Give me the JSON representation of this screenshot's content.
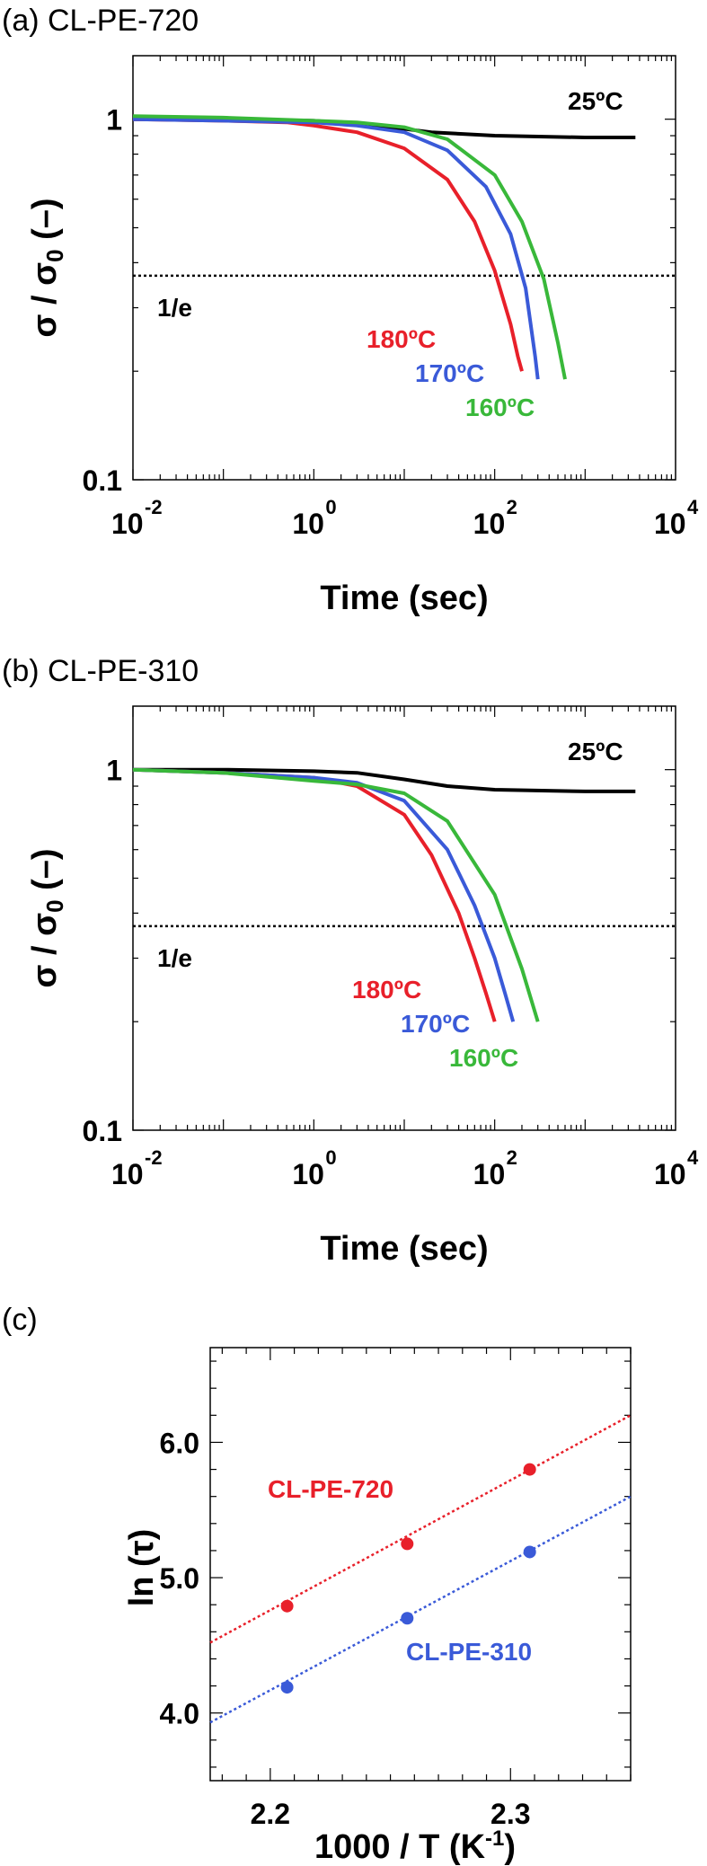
{
  "chart_data": [
    {
      "panel": "(a) CL-PE-720",
      "type": "line",
      "xlabel": "Time (sec)",
      "ylabel": "σ / σ0 (–)",
      "xscale": "log",
      "yscale": "log",
      "xlim": [
        0.01,
        10000
      ],
      "ylim": [
        0.1,
        1.5
      ],
      "xticks": [
        {
          "base": "10",
          "exp": "-2",
          "value": 0.01
        },
        {
          "base": "10",
          "exp": "0",
          "value": 1
        },
        {
          "base": "10",
          "exp": "2",
          "value": 100
        },
        {
          "base": "10",
          "exp": "4",
          "value": 10000
        }
      ],
      "yticks": [
        {
          "label": "1",
          "value": 1
        },
        {
          "label": "0.1",
          "value": 0.1
        }
      ],
      "reference_line": {
        "label": "1/e",
        "value": 0.368
      },
      "series": [
        {
          "name": "25ºC",
          "color": "#000000",
          "x": [
            0.01,
            0.1,
            1,
            5,
            20,
            100,
            1000,
            3600
          ],
          "y": [
            1.0,
            1.0,
            0.99,
            0.96,
            0.92,
            0.9,
            0.89,
            0.89
          ]
        },
        {
          "name": "180ºC",
          "color": "#e8202a",
          "x": [
            0.01,
            0.1,
            0.5,
            1,
            3,
            10,
            30,
            60,
            100,
            150,
            180,
            200
          ],
          "y": [
            1.0,
            0.99,
            0.98,
            0.96,
            0.92,
            0.83,
            0.68,
            0.52,
            0.38,
            0.27,
            0.22,
            0.2
          ]
        },
        {
          "name": "170ºC",
          "color": "#3a5ad8",
          "x": [
            0.01,
            0.1,
            1,
            3,
            10,
            30,
            80,
            150,
            220,
            280,
            300
          ],
          "y": [
            1.0,
            0.99,
            0.98,
            0.96,
            0.92,
            0.82,
            0.65,
            0.48,
            0.34,
            0.22,
            0.19
          ]
        },
        {
          "name": "160ºC",
          "color": "#39b83a",
          "x": [
            0.01,
            0.1,
            1,
            3,
            10,
            30,
            100,
            200,
            350,
            500,
            600
          ],
          "y": [
            1.02,
            1.01,
            0.99,
            0.98,
            0.95,
            0.88,
            0.7,
            0.52,
            0.36,
            0.24,
            0.19
          ]
        }
      ]
    },
    {
      "panel": "(b) CL-PE-310",
      "type": "line",
      "xlabel": "Time (sec)",
      "ylabel": "σ / σ0 (–)",
      "xscale": "log",
      "yscale": "log",
      "xlim": [
        0.01,
        10000
      ],
      "ylim": [
        0.1,
        1.5
      ],
      "xticks": [
        {
          "base": "10",
          "exp": "-2",
          "value": 0.01
        },
        {
          "base": "10",
          "exp": "0",
          "value": 1
        },
        {
          "base": "10",
          "exp": "2",
          "value": 100
        },
        {
          "base": "10",
          "exp": "4",
          "value": 10000
        }
      ],
      "yticks": [
        {
          "label": "1",
          "value": 1
        },
        {
          "label": "0.1",
          "value": 0.1
        }
      ],
      "reference_line": {
        "label": "1/e",
        "value": 0.368
      },
      "series": [
        {
          "name": "25ºC",
          "color": "#000000",
          "x": [
            0.01,
            0.1,
            1,
            3,
            10,
            30,
            100,
            1000,
            3600
          ],
          "y": [
            1.0,
            1.0,
            0.99,
            0.98,
            0.94,
            0.9,
            0.88,
            0.87,
            0.87
          ]
        },
        {
          "name": "180ºC",
          "color": "#e8202a",
          "x": [
            0.01,
            0.1,
            1,
            3,
            10,
            20,
            40,
            60,
            80,
            100
          ],
          "y": [
            1.0,
            0.98,
            0.95,
            0.9,
            0.75,
            0.58,
            0.4,
            0.3,
            0.24,
            0.2
          ]
        },
        {
          "name": "170ºC",
          "color": "#3a5ad8",
          "x": [
            0.01,
            0.1,
            1,
            3,
            10,
            30,
            60,
            100,
            130,
            160
          ],
          "y": [
            1.0,
            0.98,
            0.95,
            0.92,
            0.82,
            0.6,
            0.42,
            0.3,
            0.24,
            0.2
          ]
        },
        {
          "name": "160ºC",
          "color": "#39b83a",
          "x": [
            0.01,
            0.1,
            1,
            3,
            10,
            30,
            100,
            200,
            300
          ],
          "y": [
            1.0,
            0.98,
            0.93,
            0.91,
            0.86,
            0.72,
            0.45,
            0.28,
            0.2
          ]
        }
      ]
    },
    {
      "panel": "(c)",
      "type": "scatter",
      "xlabel": "1000 / T (K⁻¹)",
      "ylabel": "ln (τ)",
      "xlim": [
        2.175,
        2.35
      ],
      "ylim": [
        3.5,
        6.7
      ],
      "xticks": [
        {
          "label": "2.2",
          "value": 2.2
        },
        {
          "label": "2.3",
          "value": 2.3
        }
      ],
      "yticks": [
        {
          "label": "4.0",
          "value": 4.0
        },
        {
          "label": "5.0",
          "value": 5.0
        },
        {
          "label": "6.0",
          "value": 6.0
        }
      ],
      "series": [
        {
          "name": "CL-PE-720",
          "color": "#e8202a",
          "x": [
            2.207,
            2.257,
            2.308
          ],
          "y": [
            4.79,
            5.25,
            5.8
          ],
          "fit": {
            "x": [
              2.175,
              2.35
            ],
            "y": [
              4.52,
              6.2
            ]
          }
        },
        {
          "name": "CL-PE-310",
          "color": "#3a5ad8",
          "x": [
            2.207,
            2.257,
            2.308
          ],
          "y": [
            4.19,
            4.7,
            5.19
          ],
          "fit": {
            "x": [
              2.175,
              2.35
            ],
            "y": [
              3.93,
              5.6
            ]
          }
        }
      ]
    }
  ]
}
